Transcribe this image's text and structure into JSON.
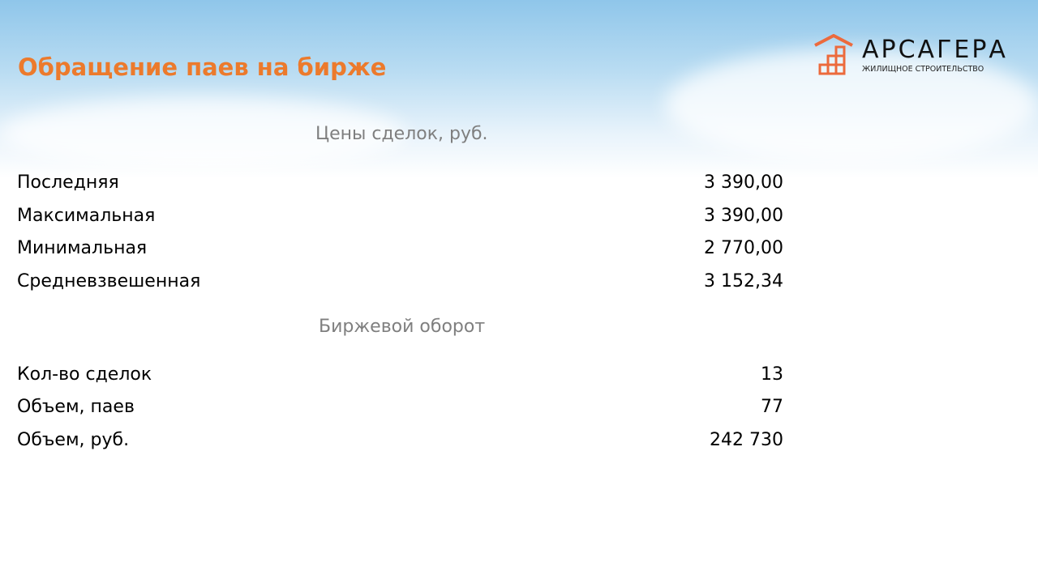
{
  "title": "Обращение паев на бирже",
  "logo": {
    "name": "АРСАГЕРА",
    "tagline": "ЖИЛИЩНОЕ СТРОИТЕЛЬСТВО",
    "color": "#ec6a3c"
  },
  "prices": {
    "heading": "Цены сделок, руб.",
    "rows": [
      {
        "label": "Последняя",
        "value": "3 390,00"
      },
      {
        "label": "Максимальная",
        "value": "3 390,00"
      },
      {
        "label": "Минимальная",
        "value": "2 770,00"
      },
      {
        "label": "Средневзвешенная",
        "value": "3 152,34"
      }
    ]
  },
  "turnover": {
    "heading": "Биржевой оборот",
    "rows": [
      {
        "label": "Кол-во сделок",
        "value": "13"
      },
      {
        "label": "Объем, паев",
        "value": "77"
      },
      {
        "label": "Объем, руб.",
        "value": "242 730"
      }
    ]
  }
}
